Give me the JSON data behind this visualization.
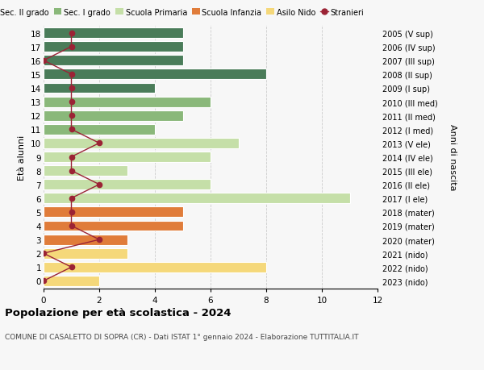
{
  "ages": [
    18,
    17,
    16,
    15,
    14,
    13,
    12,
    11,
    10,
    9,
    8,
    7,
    6,
    5,
    4,
    3,
    2,
    1,
    0
  ],
  "years": [
    "2005 (V sup)",
    "2006 (IV sup)",
    "2007 (III sup)",
    "2008 (II sup)",
    "2009 (I sup)",
    "2010 (III med)",
    "2011 (II med)",
    "2012 (I med)",
    "2013 (V ele)",
    "2014 (IV ele)",
    "2015 (III ele)",
    "2016 (II ele)",
    "2017 (I ele)",
    "2018 (mater)",
    "2019 (mater)",
    "2020 (mater)",
    "2021 (nido)",
    "2022 (nido)",
    "2023 (nido)"
  ],
  "bar_values": [
    5,
    5,
    5,
    8,
    4,
    6,
    5,
    4,
    7,
    6,
    3,
    6,
    11,
    5,
    5,
    3,
    3,
    8,
    2
  ],
  "bar_colors": [
    "#4a7c59",
    "#4a7c59",
    "#4a7c59",
    "#4a7c59",
    "#4a7c59",
    "#8ab87a",
    "#8ab87a",
    "#8ab87a",
    "#c5dfa8",
    "#c5dfa8",
    "#c5dfa8",
    "#c5dfa8",
    "#c5dfa8",
    "#e07c3a",
    "#e07c3a",
    "#e07c3a",
    "#f5d87a",
    "#f5d87a",
    "#f5d87a"
  ],
  "stranieri_values": [
    1,
    1,
    0,
    1,
    1,
    1,
    1,
    1,
    2,
    1,
    1,
    2,
    1,
    1,
    1,
    2,
    0,
    1,
    0
  ],
  "stranieri_color": "#9b2335",
  "title": "Popolazione per età scolastica - 2024",
  "subtitle": "COMUNE DI CASALETTO DI SOPRA (CR) - Dati ISTAT 1° gennaio 2024 - Elaborazione TUTTITALIA.IT",
  "ylabel_left": "Età alunni",
  "ylabel_right": "Anni di nascita",
  "xlim": [
    0,
    12
  ],
  "xticks": [
    0,
    2,
    4,
    6,
    8,
    10,
    12
  ],
  "legend_labels": [
    "Sec. II grado",
    "Sec. I grado",
    "Scuola Primaria",
    "Scuola Infanzia",
    "Asilo Nido",
    "Stranieri"
  ],
  "legend_colors": [
    "#4a7c59",
    "#8ab87a",
    "#c5dfa8",
    "#e07c3a",
    "#f5d87a",
    "#9b2335"
  ],
  "background_color": "#f7f7f7",
  "bar_height": 0.75,
  "figsize": [
    6.0,
    4.6
  ],
  "dpi": 100
}
